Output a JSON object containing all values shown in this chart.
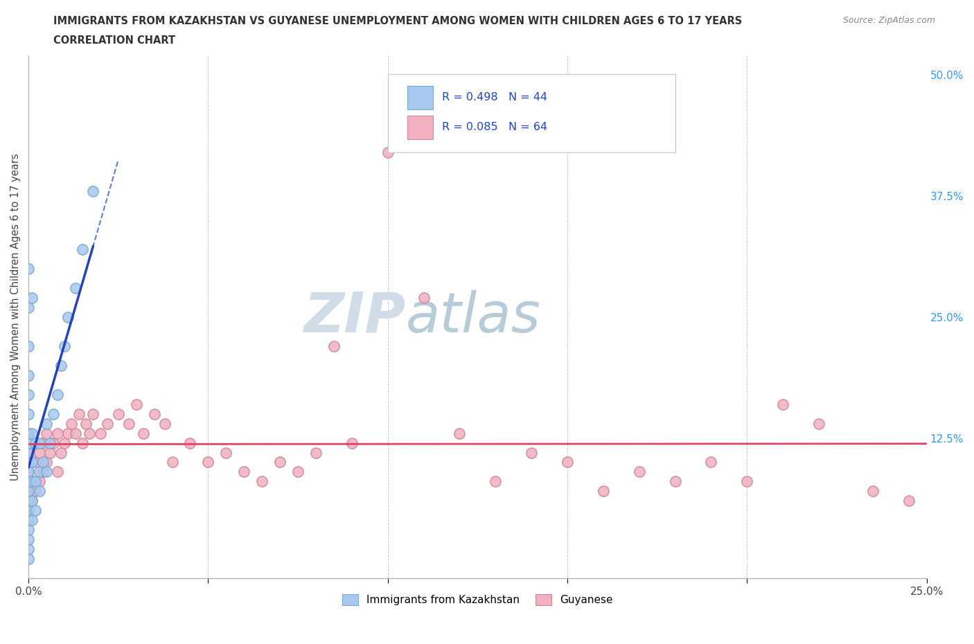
{
  "title_line1": "IMMIGRANTS FROM KAZAKHSTAN VS GUYANESE UNEMPLOYMENT AMONG WOMEN WITH CHILDREN AGES 6 TO 17 YEARS",
  "title_line2": "CORRELATION CHART",
  "source": "Source: ZipAtlas.com",
  "ylabel": "Unemployment Among Women with Children Ages 6 to 17 years",
  "xlim": [
    0.0,
    0.25
  ],
  "ylim": [
    -0.02,
    0.52
  ],
  "xtick_vals": [
    0.0,
    0.05,
    0.1,
    0.15,
    0.2,
    0.25
  ],
  "xtick_labels": [
    "0.0%",
    "",
    "",
    "",
    "",
    "25.0%"
  ],
  "ytick_vals_right": [
    0.125,
    0.25,
    0.375,
    0.5
  ],
  "ytick_labels_right": [
    "12.5%",
    "25.0%",
    "37.5%",
    "50.0%"
  ],
  "color_kaz": "#a8c8f0",
  "color_kaz_edge": "#7aaad0",
  "color_guy": "#f0b0c0",
  "color_guy_edge": "#d08898",
  "trendline_kaz_color": "#2244bb",
  "trendline_guy_color": "#dd4466",
  "watermark_color": "#d0dde8",
  "kaz_x": [
    0.0,
    0.0,
    0.0,
    0.0,
    0.0,
    0.0,
    0.0,
    0.0,
    0.0,
    0.0,
    0.0,
    0.0,
    0.0,
    0.0,
    0.0,
    0.0,
    0.0,
    0.0,
    0.0,
    0.0,
    0.001,
    0.001,
    0.001,
    0.001,
    0.001,
    0.001,
    0.002,
    0.002,
    0.002,
    0.003,
    0.003,
    0.003,
    0.004,
    0.005,
    0.005,
    0.006,
    0.007,
    0.008,
    0.009,
    0.01,
    0.011,
    0.013,
    0.015,
    0.018
  ],
  "kaz_y": [
    0.0,
    0.01,
    0.02,
    0.03,
    0.04,
    0.05,
    0.06,
    0.07,
    0.08,
    0.09,
    0.1,
    0.11,
    0.12,
    0.13,
    0.15,
    0.17,
    0.19,
    0.22,
    0.26,
    0.3,
    0.04,
    0.06,
    0.08,
    0.1,
    0.13,
    0.27,
    0.05,
    0.08,
    0.12,
    0.07,
    0.09,
    0.12,
    0.1,
    0.09,
    0.14,
    0.12,
    0.15,
    0.17,
    0.2,
    0.22,
    0.25,
    0.28,
    0.32,
    0.38
  ],
  "guy_x": [
    0.0,
    0.0,
    0.0,
    0.0,
    0.0,
    0.001,
    0.001,
    0.001,
    0.002,
    0.002,
    0.003,
    0.003,
    0.004,
    0.004,
    0.005,
    0.005,
    0.006,
    0.007,
    0.008,
    0.008,
    0.009,
    0.01,
    0.011,
    0.012,
    0.013,
    0.014,
    0.015,
    0.016,
    0.017,
    0.018,
    0.02,
    0.022,
    0.025,
    0.028,
    0.03,
    0.032,
    0.035,
    0.038,
    0.04,
    0.045,
    0.05,
    0.055,
    0.06,
    0.065,
    0.07,
    0.075,
    0.08,
    0.085,
    0.09,
    0.1,
    0.11,
    0.12,
    0.13,
    0.14,
    0.15,
    0.16,
    0.17,
    0.18,
    0.19,
    0.2,
    0.21,
    0.22,
    0.235,
    0.245
  ],
  "guy_y": [
    0.05,
    0.07,
    0.09,
    0.11,
    0.13,
    0.06,
    0.08,
    0.1,
    0.07,
    0.1,
    0.08,
    0.11,
    0.09,
    0.12,
    0.1,
    0.13,
    0.11,
    0.12,
    0.09,
    0.13,
    0.11,
    0.12,
    0.13,
    0.14,
    0.13,
    0.15,
    0.12,
    0.14,
    0.13,
    0.15,
    0.13,
    0.14,
    0.15,
    0.14,
    0.16,
    0.13,
    0.15,
    0.14,
    0.1,
    0.12,
    0.1,
    0.11,
    0.09,
    0.08,
    0.1,
    0.09,
    0.11,
    0.22,
    0.12,
    0.42,
    0.27,
    0.13,
    0.08,
    0.11,
    0.1,
    0.07,
    0.09,
    0.08,
    0.1,
    0.08,
    0.16,
    0.14,
    0.07,
    0.06
  ],
  "kaz_trendline_x": [
    0.0,
    0.018
  ],
  "guy_trendline_x": [
    0.0,
    0.245
  ],
  "guy_trendline_y_start": 0.098,
  "guy_trendline_y_end": 0.168
}
